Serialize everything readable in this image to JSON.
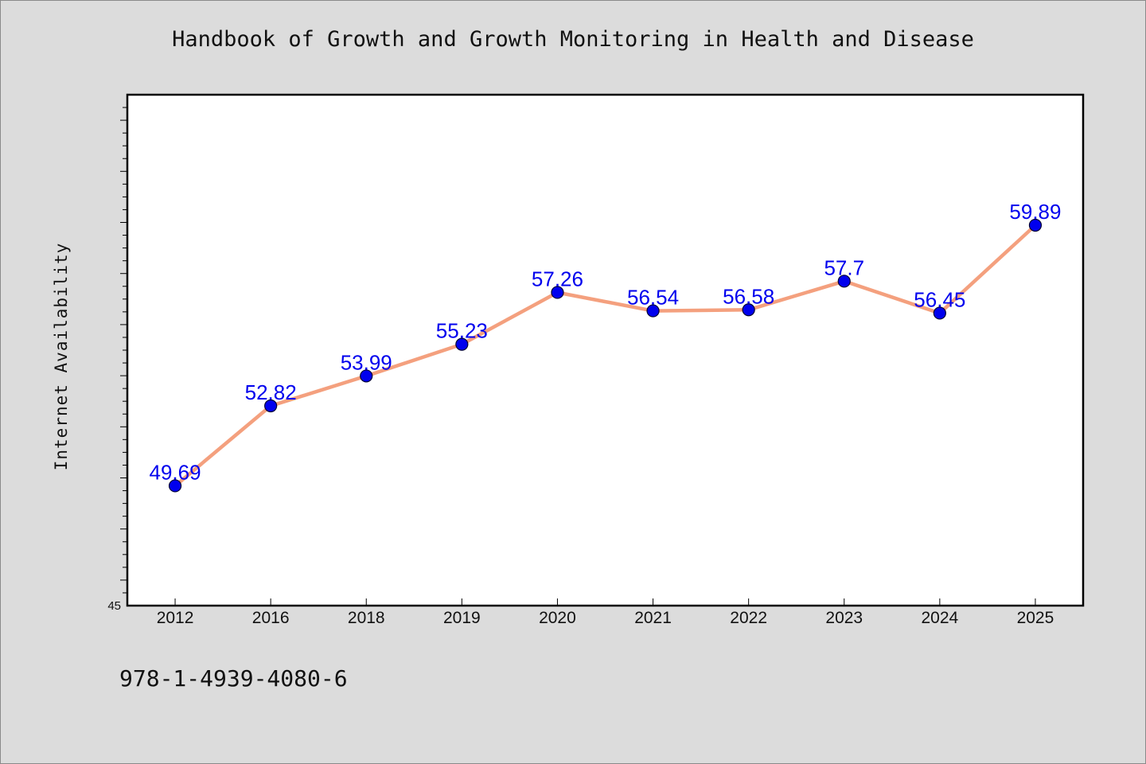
{
  "chart_data": {
    "type": "line",
    "title": "Handbook of Growth and Growth Monitoring in Health and Disease",
    "ylabel": "Internet Availability",
    "xlabel": "",
    "categories": [
      "2012",
      "2016",
      "2018",
      "2019",
      "2020",
      "2021",
      "2022",
      "2023",
      "2024",
      "2025"
    ],
    "series": [
      {
        "values": [
          49.69,
          52.82,
          53.99,
          55.23,
          57.26,
          56.54,
          56.58,
          57.7,
          56.45,
          59.89
        ],
        "value_labels": [
          "49.69",
          "52.82",
          "53.99",
          "55.23",
          "57.26",
          "56.54",
          "56.58",
          "57.7",
          "56.45",
          "59.89"
        ]
      }
    ],
    "ylim": [
      45,
      65
    ],
    "y_tick_labels": [
      "45"
    ],
    "grid": false,
    "colors": {
      "line": "#f4a07e",
      "marker": "#0000ee",
      "label": "#0000ee"
    }
  },
  "footer": {
    "isbn": "978-1-4939-4080-6"
  }
}
